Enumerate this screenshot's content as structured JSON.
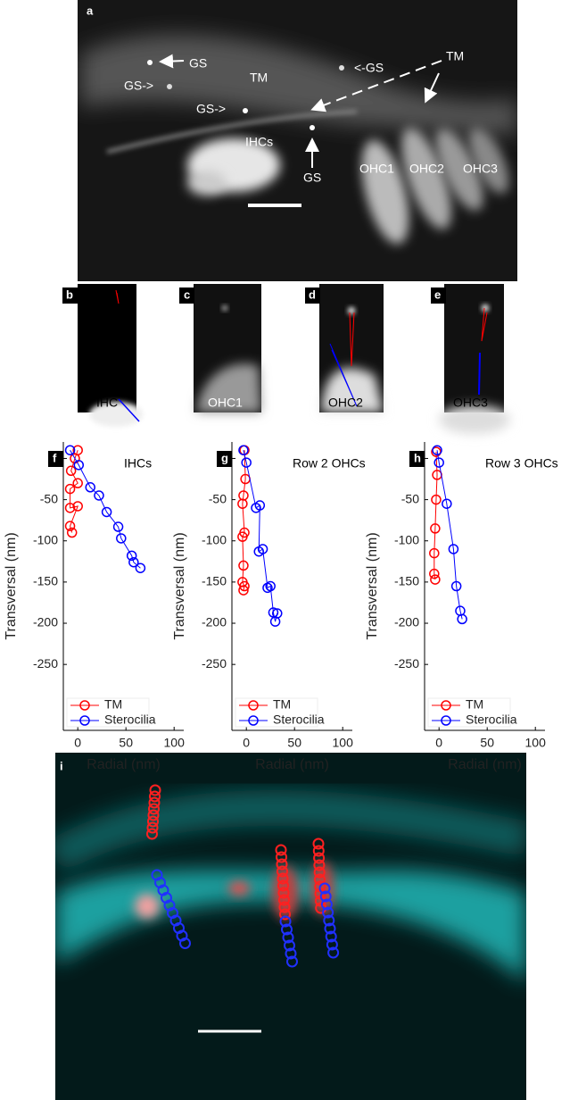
{
  "panel_a": {
    "label": "a",
    "annotations": [
      "GS",
      "GS->",
      "TM",
      "GS->",
      "<-GS",
      "TM",
      "IHCs",
      "GS",
      "OHC1",
      "OHC2",
      "OHC3"
    ]
  },
  "panels_bcde": [
    {
      "label": "b",
      "cell": "IHC"
    },
    {
      "label": "c",
      "cell": "OHC1"
    },
    {
      "label": "d",
      "cell": "OHC2"
    },
    {
      "label": "e",
      "cell": "OHC3"
    }
  ],
  "panel_i": {
    "label": "i"
  },
  "chart_data": [
    {
      "type": "line",
      "panel": "f",
      "title": "IHCs",
      "x_label": "Radial (nm)",
      "y_label": "Transversal (nm)",
      "xlim": [
        -15,
        110
      ],
      "ylim": [
        -330,
        20
      ],
      "xticks": [
        0,
        50,
        100
      ],
      "yticks": [
        0,
        -50,
        -100,
        -150,
        -200,
        -250
      ],
      "series": [
        {
          "name": "TM",
          "color": "#ff0000",
          "x": [
            0,
            -3,
            -7,
            0,
            -8,
            -8,
            0,
            -8,
            -6
          ],
          "values": [
            10,
            0,
            -15,
            -30,
            -37,
            -60,
            -58,
            -82,
            -90
          ]
        },
        {
          "name": "Sterocilia",
          "color": "#0000ff",
          "x": [
            -8,
            1,
            13,
            22,
            30,
            42,
            45,
            56,
            58,
            65
          ],
          "values": [
            10,
            -8,
            -35,
            -45,
            -65,
            -83,
            -97,
            -118,
            -126,
            -133
          ]
        }
      ]
    },
    {
      "type": "line",
      "panel": "g",
      "title": "Row 2 OHCs",
      "x_label": "Radial (nm)",
      "y_label": "Transversal (nm)",
      "xlim": [
        -15,
        110
      ],
      "ylim": [
        -330,
        20
      ],
      "xticks": [
        0,
        50,
        100
      ],
      "yticks": [
        0,
        -50,
        -100,
        -150,
        -200,
        -250
      ],
      "series": [
        {
          "name": "TM",
          "color": "#ff0000",
          "x": [
            -2,
            -1,
            -3,
            -4,
            -2,
            -4,
            -3,
            -4,
            -2,
            -3
          ],
          "values": [
            10,
            -25,
            -45,
            -55,
            -90,
            -95,
            -130,
            -150,
            -155,
            -160
          ]
        },
        {
          "name": "Sterocilia",
          "color": "#0000ff",
          "x": [
            -3,
            0,
            10,
            14,
            13,
            17,
            22,
            25,
            28,
            30,
            32
          ],
          "values": [
            10,
            -5,
            -60,
            -57,
            -113,
            -110,
            -157,
            -155,
            -187,
            -198,
            -188
          ]
        }
      ]
    },
    {
      "type": "line",
      "panel": "h",
      "title": "Row 3 OHCs",
      "x_label": "Radial (nm)",
      "y_label": "Transversal (nm)",
      "xlim": [
        -15,
        110
      ],
      "ylim": [
        -330,
        20
      ],
      "xticks": [
        0,
        50,
        100
      ],
      "yticks": [
        0,
        -50,
        -100,
        -150,
        -200,
        -250
      ],
      "series": [
        {
          "name": "TM",
          "color": "#ff0000",
          "x": [
            -3,
            -2,
            -3,
            -4,
            -5,
            -5,
            -4
          ],
          "values": [
            8,
            -20,
            -50,
            -85,
            -115,
            -140,
            -147
          ]
        },
        {
          "name": "Sterocilia",
          "color": "#0000ff",
          "x": [
            -2,
            0,
            8,
            15,
            18,
            22,
            24
          ],
          "values": [
            10,
            -5,
            -55,
            -110,
            -155,
            -185,
            -195
          ]
        }
      ]
    }
  ]
}
